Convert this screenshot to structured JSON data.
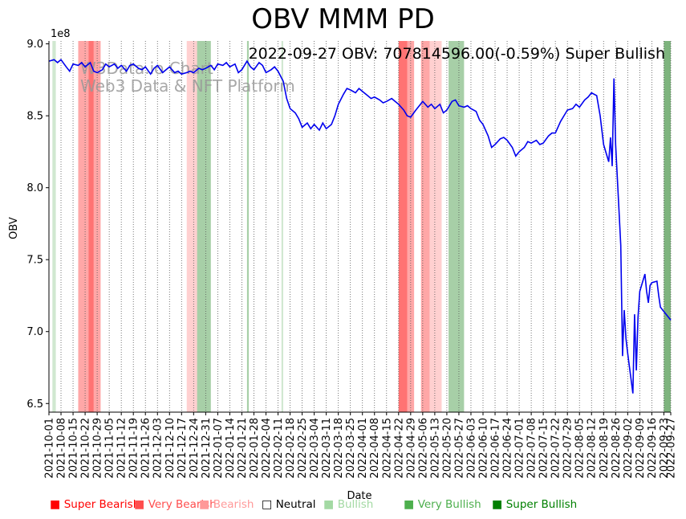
{
  "chart_data": {
    "type": "line",
    "title": "OBV MMM PD",
    "xlabel": "Date",
    "ylabel": "OBV",
    "y_multiplier": "1e8",
    "annotation": "2022-09-27 OBV: 707814596.00(-0.59%) Super Bullish",
    "watermark_line1": "W3Data.io Chart",
    "watermark_line2": "Web3 Data & NFT Platform",
    "ylim": [
      6.44,
      9.02
    ],
    "xlim": [
      "2021-10-01",
      "2022-09-27"
    ],
    "x_ticks": [
      "2021-10-01",
      "2021-10-08",
      "2021-10-15",
      "2021-10-22",
      "2021-10-29",
      "2021-11-05",
      "2021-11-12",
      "2021-11-19",
      "2021-11-26",
      "2021-12-03",
      "2021-12-10",
      "2021-12-17",
      "2021-12-24",
      "2021-12-31",
      "2022-01-07",
      "2022-01-14",
      "2022-01-21",
      "2022-01-28",
      "2022-02-04",
      "2022-02-11",
      "2022-02-18",
      "2022-02-25",
      "2022-03-04",
      "2022-03-11",
      "2022-03-18",
      "2022-03-25",
      "2022-04-01",
      "2022-04-08",
      "2022-04-15",
      "2022-04-22",
      "2022-04-29",
      "2022-05-06",
      "2022-05-13",
      "2022-05-20",
      "2022-05-27",
      "2022-06-03",
      "2022-06-10",
      "2022-06-17",
      "2022-06-24",
      "2022-07-01",
      "2022-07-08",
      "2022-07-15",
      "2022-07-22",
      "2022-07-29",
      "2022-08-05",
      "2022-08-12",
      "2022-08-19",
      "2022-08-26",
      "2022-09-02",
      "2022-09-09",
      "2022-09-16",
      "2022-09-23",
      "2022-09-27"
    ],
    "y_ticks": [
      "6.5",
      "7.0",
      "7.5",
      "8.0",
      "8.5",
      "9.0"
    ],
    "series": [
      {
        "color": "#0000ee",
        "points": [
          [
            "2021-10-01",
            8.88
          ],
          [
            "2021-10-04",
            8.89
          ],
          [
            "2021-10-06",
            8.87
          ],
          [
            "2021-10-08",
            8.89
          ],
          [
            "2021-10-11",
            8.84
          ],
          [
            "2021-10-13",
            8.81
          ],
          [
            "2021-10-15",
            8.86
          ],
          [
            "2021-10-18",
            8.85
          ],
          [
            "2021-10-20",
            8.87
          ],
          [
            "2021-10-22",
            8.84
          ],
          [
            "2021-10-25",
            8.87
          ],
          [
            "2021-10-27",
            8.81
          ],
          [
            "2021-10-29",
            8.8
          ],
          [
            "2021-11-01",
            8.82
          ],
          [
            "2021-11-03",
            8.86
          ],
          [
            "2021-11-05",
            8.84
          ],
          [
            "2021-11-08",
            8.86
          ],
          [
            "2021-11-10",
            8.83
          ],
          [
            "2021-11-12",
            8.85
          ],
          [
            "2021-11-15",
            8.81
          ],
          [
            "2021-11-17",
            8.85
          ],
          [
            "2021-11-19",
            8.86
          ],
          [
            "2021-11-22",
            8.83
          ],
          [
            "2021-11-24",
            8.82
          ],
          [
            "2021-11-26",
            8.84
          ],
          [
            "2021-11-29",
            8.79
          ],
          [
            "2021-12-01",
            8.83
          ],
          [
            "2021-12-03",
            8.85
          ],
          [
            "2021-12-06",
            8.8
          ],
          [
            "2021-12-08",
            8.82
          ],
          [
            "2021-12-10",
            8.84
          ],
          [
            "2021-12-13",
            8.8
          ],
          [
            "2021-12-15",
            8.81
          ],
          [
            "2021-12-17",
            8.79
          ],
          [
            "2021-12-20",
            8.8
          ],
          [
            "2021-12-22",
            8.81
          ],
          [
            "2021-12-24",
            8.8
          ],
          [
            "2021-12-27",
            8.83
          ],
          [
            "2021-12-29",
            8.82
          ],
          [
            "2021-12-31",
            8.83
          ],
          [
            "2022-01-03",
            8.85
          ],
          [
            "2022-01-05",
            8.82
          ],
          [
            "2022-01-07",
            8.86
          ],
          [
            "2022-01-10",
            8.85
          ],
          [
            "2022-01-12",
            8.87
          ],
          [
            "2022-01-14",
            8.84
          ],
          [
            "2022-01-17",
            8.86
          ],
          [
            "2022-01-19",
            8.8
          ],
          [
            "2022-01-21",
            8.82
          ],
          [
            "2022-01-24",
            8.88
          ],
          [
            "2022-01-26",
            8.84
          ],
          [
            "2022-01-28",
            8.82
          ],
          [
            "2022-01-31",
            8.87
          ],
          [
            "2022-02-02",
            8.85
          ],
          [
            "2022-02-04",
            8.8
          ],
          [
            "2022-02-07",
            8.82
          ],
          [
            "2022-02-09",
            8.84
          ],
          [
            "2022-02-11",
            8.81
          ],
          [
            "2022-02-14",
            8.74
          ],
          [
            "2022-02-16",
            8.62
          ],
          [
            "2022-02-18",
            8.55
          ],
          [
            "2022-02-21",
            8.52
          ],
          [
            "2022-02-23",
            8.48
          ],
          [
            "2022-02-25",
            8.42
          ],
          [
            "2022-02-28",
            8.45
          ],
          [
            "2022-03-02",
            8.41
          ],
          [
            "2022-03-04",
            8.44
          ],
          [
            "2022-03-07",
            8.4
          ],
          [
            "2022-03-09",
            8.45
          ],
          [
            "2022-03-11",
            8.41
          ],
          [
            "2022-03-14",
            8.44
          ],
          [
            "2022-03-16",
            8.5
          ],
          [
            "2022-03-18",
            8.58
          ],
          [
            "2022-03-21",
            8.65
          ],
          [
            "2022-03-23",
            8.69
          ],
          [
            "2022-03-25",
            8.68
          ],
          [
            "2022-03-28",
            8.66
          ],
          [
            "2022-03-30",
            8.69
          ],
          [
            "2022-04-01",
            8.67
          ],
          [
            "2022-04-04",
            8.64
          ],
          [
            "2022-04-06",
            8.62
          ],
          [
            "2022-04-08",
            8.63
          ],
          [
            "2022-04-11",
            8.61
          ],
          [
            "2022-04-13",
            8.59
          ],
          [
            "2022-04-15",
            8.6
          ],
          [
            "2022-04-18",
            8.62
          ],
          [
            "2022-04-20",
            8.6
          ],
          [
            "2022-04-22",
            8.58
          ],
          [
            "2022-04-25",
            8.54
          ],
          [
            "2022-04-27",
            8.5
          ],
          [
            "2022-04-29",
            8.49
          ],
          [
            "2022-05-02",
            8.54
          ],
          [
            "2022-05-04",
            8.57
          ],
          [
            "2022-05-06",
            8.6
          ],
          [
            "2022-05-09",
            8.56
          ],
          [
            "2022-05-11",
            8.58
          ],
          [
            "2022-05-13",
            8.55
          ],
          [
            "2022-05-16",
            8.58
          ],
          [
            "2022-05-18",
            8.52
          ],
          [
            "2022-05-20",
            8.54
          ],
          [
            "2022-05-23",
            8.6
          ],
          [
            "2022-05-25",
            8.61
          ],
          [
            "2022-05-27",
            8.57
          ],
          [
            "2022-05-30",
            8.56
          ],
          [
            "2022-06-01",
            8.57
          ],
          [
            "2022-06-03",
            8.55
          ],
          [
            "2022-06-06",
            8.53
          ],
          [
            "2022-06-08",
            8.47
          ],
          [
            "2022-06-10",
            8.44
          ],
          [
            "2022-06-13",
            8.36
          ],
          [
            "2022-06-15",
            8.28
          ],
          [
            "2022-06-17",
            8.3
          ],
          [
            "2022-06-20",
            8.34
          ],
          [
            "2022-06-22",
            8.35
          ],
          [
            "2022-06-24",
            8.33
          ],
          [
            "2022-06-27",
            8.28
          ],
          [
            "2022-06-29",
            8.22
          ],
          [
            "2022-07-01",
            8.25
          ],
          [
            "2022-07-04",
            8.28
          ],
          [
            "2022-07-06",
            8.32
          ],
          [
            "2022-07-08",
            8.31
          ],
          [
            "2022-07-11",
            8.33
          ],
          [
            "2022-07-13",
            8.3
          ],
          [
            "2022-07-15",
            8.31
          ],
          [
            "2022-07-18",
            8.36
          ],
          [
            "2022-07-20",
            8.38
          ],
          [
            "2022-07-22",
            8.38
          ],
          [
            "2022-07-25",
            8.46
          ],
          [
            "2022-07-27",
            8.5
          ],
          [
            "2022-07-29",
            8.54
          ],
          [
            "2022-08-01",
            8.55
          ],
          [
            "2022-08-03",
            8.58
          ],
          [
            "2022-08-05",
            8.56
          ],
          [
            "2022-08-08",
            8.61
          ],
          [
            "2022-08-10",
            8.63
          ],
          [
            "2022-08-12",
            8.66
          ],
          [
            "2022-08-15",
            8.64
          ],
          [
            "2022-08-17",
            8.5
          ],
          [
            "2022-08-19",
            8.3
          ],
          [
            "2022-08-22",
            8.18
          ],
          [
            "2022-08-23",
            8.35
          ],
          [
            "2022-08-24",
            8.15
          ],
          [
            "2022-08-25",
            8.76
          ],
          [
            "2022-08-26",
            8.3
          ],
          [
            "2022-08-29",
            7.6
          ],
          [
            "2022-08-30",
            6.83
          ],
          [
            "2022-08-31",
            7.15
          ],
          [
            "2022-09-01",
            6.95
          ],
          [
            "2022-09-02",
            6.85
          ],
          [
            "2022-09-05",
            6.57
          ],
          [
            "2022-09-06",
            7.12
          ],
          [
            "2022-09-07",
            6.73
          ],
          [
            "2022-09-08",
            7.1
          ],
          [
            "2022-09-09",
            7.28
          ],
          [
            "2022-09-12",
            7.4
          ],
          [
            "2022-09-13",
            7.28
          ],
          [
            "2022-09-14",
            7.2
          ],
          [
            "2022-09-15",
            7.32
          ],
          [
            "2022-09-16",
            7.34
          ],
          [
            "2022-09-19",
            7.35
          ],
          [
            "2022-09-20",
            7.25
          ],
          [
            "2022-09-21",
            7.17
          ],
          [
            "2022-09-23",
            7.14
          ],
          [
            "2022-09-27",
            7.08
          ]
        ]
      }
    ],
    "signal_bands": [
      {
        "start": "2021-10-03",
        "end": "2021-10-05",
        "signal": "Bullish"
      },
      {
        "start": "2021-10-18",
        "end": "2021-10-24",
        "signal": "Very Bearish"
      },
      {
        "start": "2021-10-24",
        "end": "2021-10-27",
        "signal": "Super Bearish"
      },
      {
        "start": "2021-10-27",
        "end": "2021-10-31",
        "signal": "Very Bearish"
      },
      {
        "start": "2021-12-20",
        "end": "2021-12-26",
        "signal": "Bearish"
      },
      {
        "start": "2021-12-26",
        "end": "2022-01-03",
        "signal": "Very Bullish"
      },
      {
        "start": "2022-01-24",
        "end": "2022-01-25",
        "signal": "Very Bullish"
      },
      {
        "start": "2022-02-13",
        "end": "2022-02-14",
        "signal": "Bullish"
      },
      {
        "start": "2022-04-22",
        "end": "2022-04-27",
        "signal": "Super Bearish"
      },
      {
        "start": "2022-04-27",
        "end": "2022-05-01",
        "signal": "Very Bearish"
      },
      {
        "start": "2022-05-05",
        "end": "2022-05-10",
        "signal": "Very Bearish"
      },
      {
        "start": "2022-05-10",
        "end": "2022-05-17",
        "signal": "Bearish"
      },
      {
        "start": "2022-05-21",
        "end": "2022-05-30",
        "signal": "Very Bullish"
      },
      {
        "start": "2022-09-23",
        "end": "2022-09-27",
        "signal": "Super Bullish"
      }
    ],
    "legend": [
      {
        "label": "Super Bearish",
        "color": "#ff0000",
        "marker": "■"
      },
      {
        "label": "Very Bearish",
        "color": "#ff4d4d",
        "marker": "■"
      },
      {
        "label": "Bearish",
        "color": "#ff9999",
        "marker": "■"
      },
      {
        "label": "Neutral",
        "color": "#000000",
        "marker": "□"
      },
      {
        "label": "Bullish",
        "color": "#a3d9a3",
        "marker": "■"
      },
      {
        "label": "Very Bullish",
        "color": "#4daf4d",
        "marker": "■"
      },
      {
        "label": "Super Bullish",
        "color": "#008000",
        "marker": "■"
      }
    ],
    "band_colors": {
      "Super Bearish": "rgba(255,0,0,0.55)",
      "Very Bearish": "rgba(255,60,60,0.45)",
      "Bearish": "rgba(255,120,120,0.35)",
      "Bullish": "rgba(120,190,120,0.35)",
      "Very Bullish": "rgba(80,160,80,0.5)",
      "Super Bullish": "rgba(40,130,40,0.6)"
    },
    "grid": "vertical-dotted",
    "legend_placement": "bottom"
  }
}
